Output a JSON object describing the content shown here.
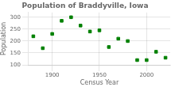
{
  "chart_data": {
    "type": "scatter",
    "title": "Population of Braddyville, Iowa",
    "xlabel": "Census Year",
    "ylabel": "Population",
    "x": [
      1880,
      1890,
      1900,
      1910,
      1920,
      1930,
      1940,
      1950,
      1960,
      1970,
      1980,
      1990,
      2000,
      2010,
      2020
    ],
    "values": [
      220,
      170,
      230,
      285,
      300,
      265,
      240,
      245,
      175,
      210,
      200,
      120,
      120,
      155,
      130
    ],
    "color": "#008000",
    "marker": "square",
    "xlim": [
      1875,
      2025
    ],
    "xticks": [
      1900,
      1950,
      2000
    ],
    "ylim": [
      100,
      320
    ],
    "yticks": [
      100,
      150,
      200,
      250,
      300
    ],
    "grid": true
  }
}
